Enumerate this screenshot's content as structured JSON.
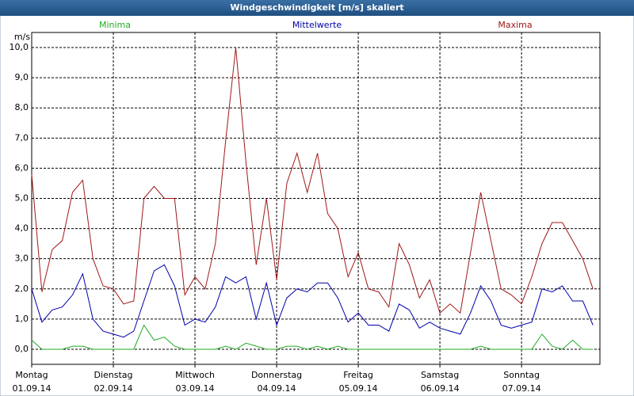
{
  "chart_data": {
    "type": "line",
    "title": "Windgeschwindigkeit [m/s] skaliert",
    "y_unit": "m/s",
    "x": [
      0,
      0.125,
      0.25,
      0.375,
      0.5,
      0.625,
      0.75,
      0.875,
      1,
      1.125,
      1.25,
      1.375,
      1.5,
      1.625,
      1.75,
      1.875,
      2,
      2.125,
      2.25,
      2.375,
      2.5,
      2.625,
      2.75,
      2.875,
      3,
      3.125,
      3.25,
      3.375,
      3.5,
      3.625,
      3.75,
      3.875,
      4,
      4.125,
      4.25,
      4.375,
      4.5,
      4.625,
      4.75,
      4.875,
      5,
      5.125,
      5.25,
      5.375,
      5.5,
      5.625,
      5.75,
      5.875,
      6,
      6.125,
      6.25,
      6.375,
      6.5,
      6.625,
      6.75,
      6.875
    ],
    "series": [
      {
        "name": "Minima",
        "color": "#22aa22",
        "values": [
          0.3,
          0,
          0,
          0,
          0.1,
          0.1,
          0,
          0,
          0,
          0,
          0,
          0.8,
          0.3,
          0.4,
          0.1,
          0,
          0,
          0,
          0,
          0.1,
          0,
          0.2,
          0.1,
          0,
          0,
          0.1,
          0.1,
          0,
          0.1,
          0,
          0.1,
          0,
          0,
          0,
          0,
          0,
          0,
          0,
          0,
          0,
          0,
          0,
          0,
          0,
          0.1,
          0,
          0,
          0,
          0,
          0,
          0.5,
          0.1,
          0,
          0.3,
          0,
          0
        ]
      },
      {
        "name": "Mittelwerte",
        "color": "#0000aa",
        "values": [
          2.0,
          0.9,
          1.3,
          1.4,
          1.8,
          2.5,
          1.0,
          0.6,
          0.5,
          0.4,
          0.6,
          1.6,
          2.6,
          2.8,
          2.1,
          0.8,
          1.0,
          0.9,
          1.4,
          2.4,
          2.2,
          2.4,
          1.0,
          2.2,
          0.8,
          1.7,
          2.0,
          1.9,
          2.2,
          2.2,
          1.7,
          0.9,
          1.2,
          0.8,
          0.8,
          0.6,
          1.5,
          1.3,
          0.7,
          0.9,
          0.7,
          0.6,
          0.5,
          1.2,
          2.1,
          1.6,
          0.8,
          0.7,
          0.8,
          0.9,
          2.0,
          1.9,
          2.1,
          1.6,
          1.6,
          0.8
        ]
      },
      {
        "name": "Maxima",
        "color": "#a01818",
        "values": [
          5.8,
          1.9,
          3.3,
          3.6,
          5.2,
          5.6,
          3.0,
          2.1,
          2.0,
          1.5,
          1.6,
          5.0,
          5.4,
          5.0,
          5.0,
          1.8,
          2.4,
          2.0,
          3.5,
          6.9,
          10.0,
          6.2,
          2.8,
          5.0,
          2.3,
          5.5,
          6.5,
          5.2,
          6.5,
          4.5,
          4.0,
          2.4,
          3.2,
          2.0,
          1.9,
          1.4,
          3.5,
          2.8,
          1.7,
          2.3,
          1.2,
          1.5,
          1.2,
          3.2,
          5.2,
          3.6,
          2.0,
          1.8,
          1.5,
          2.4,
          3.5,
          4.2,
          4.2,
          3.6,
          3.0,
          2.0
        ]
      }
    ],
    "xlim": [
      0,
      6.96
    ],
    "xticks": [
      {
        "value": 0,
        "label": "Montag"
      },
      {
        "value": 1,
        "label": "Dienstag"
      },
      {
        "value": 2,
        "label": "Mittwoch"
      },
      {
        "value": 3,
        "label": "Donnerstag"
      },
      {
        "value": 4,
        "label": "Freitag"
      },
      {
        "value": 5,
        "label": "Samstag"
      },
      {
        "value": 6,
        "label": "Sonntag"
      }
    ],
    "xtick_dates": [
      "01.09.14",
      "02.09.14",
      "03.09.14",
      "04.09.14",
      "05.09.14",
      "06.09.14",
      "07.09.14"
    ],
    "ylim": [
      -0.5,
      10.5
    ],
    "yticks": [
      {
        "value": 0,
        "label": "0,0"
      },
      {
        "value": 1,
        "label": "1,0"
      },
      {
        "value": 2,
        "label": "2,0"
      },
      {
        "value": 3,
        "label": "3,0"
      },
      {
        "value": 4,
        "label": "4,0"
      },
      {
        "value": 5,
        "label": "5,0"
      },
      {
        "value": 6,
        "label": "6,0"
      },
      {
        "value": 7,
        "label": "7,0"
      },
      {
        "value": 8,
        "label": "8,0"
      },
      {
        "value": 9,
        "label": "9,0"
      },
      {
        "value": 10,
        "label": "10,0"
      }
    ],
    "grid": true
  }
}
